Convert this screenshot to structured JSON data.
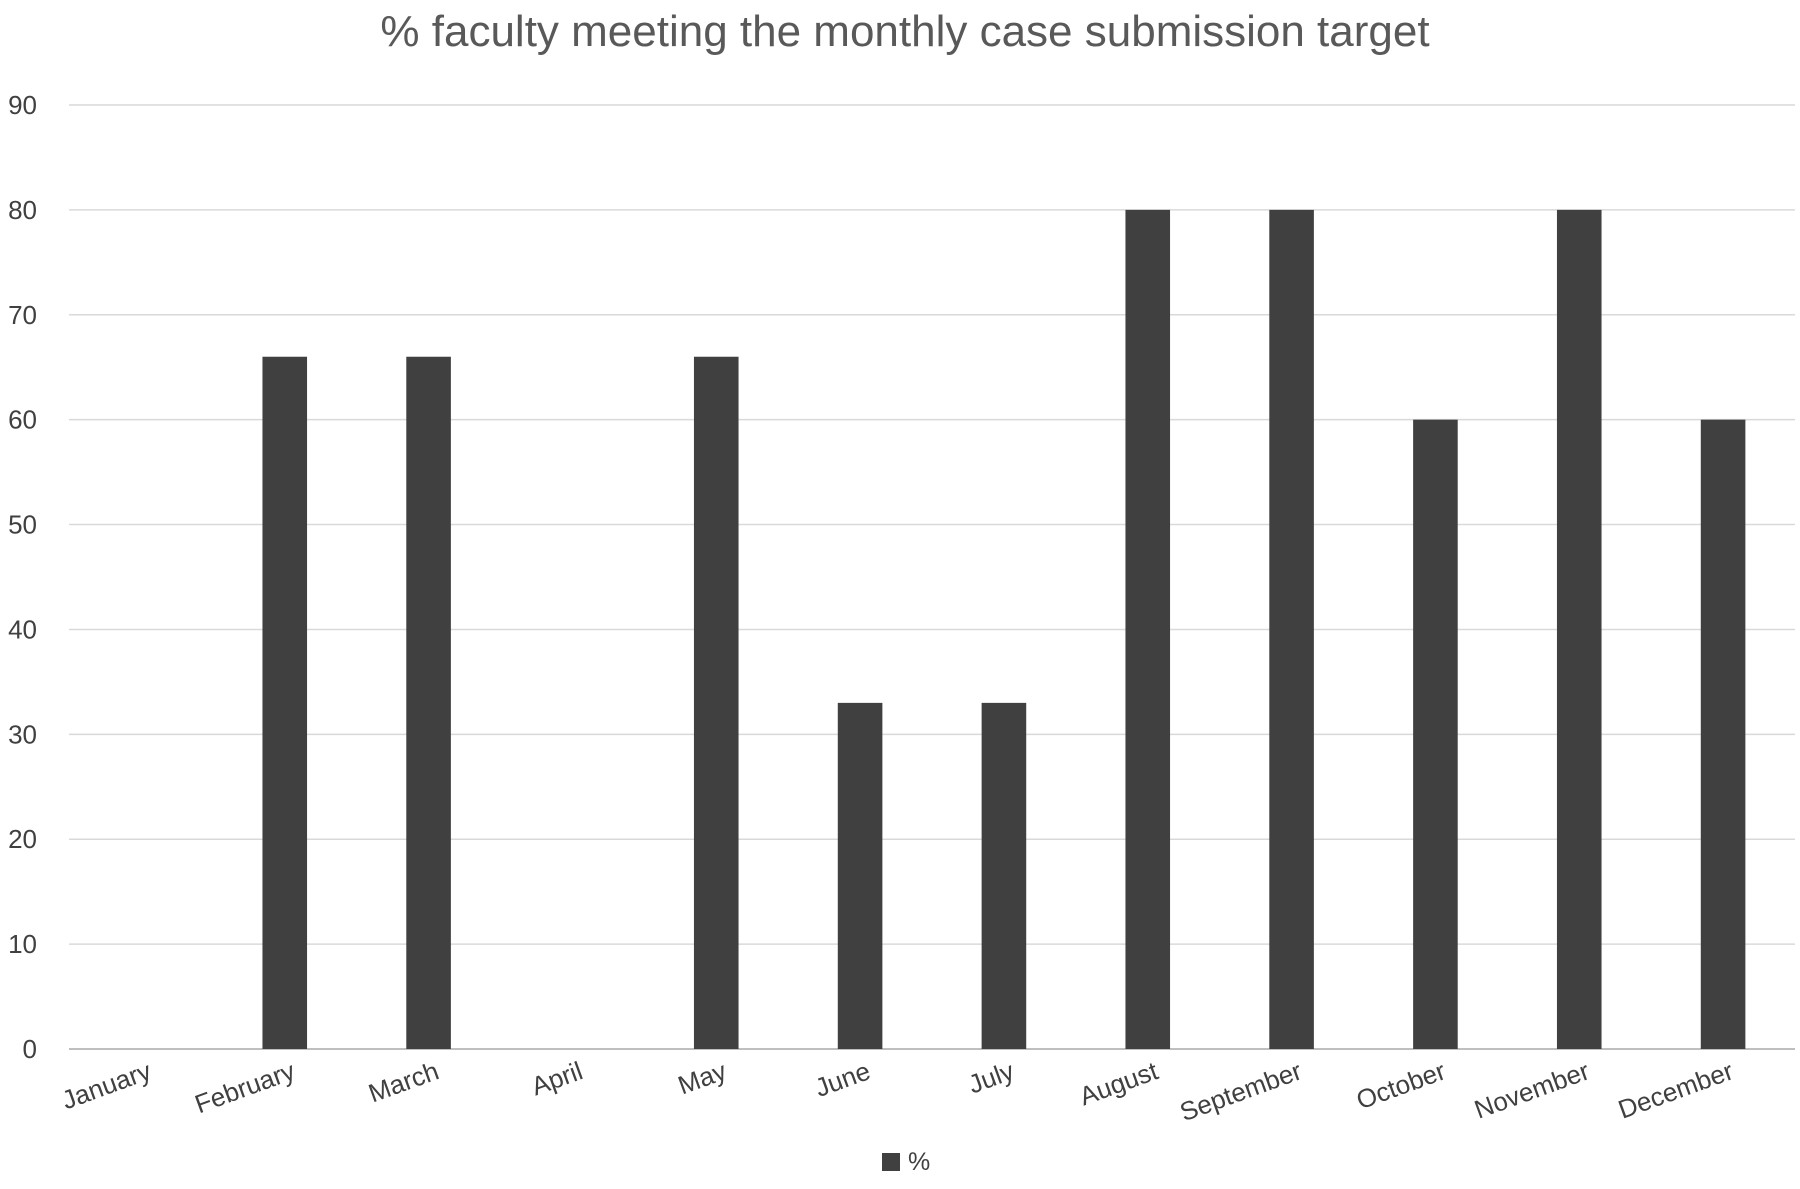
{
  "chart_data": {
    "type": "bar",
    "title": "% faculty meeting the monthly case submission target",
    "xlabel": "",
    "ylabel": "",
    "categories": [
      "January",
      "February",
      "March",
      "April",
      "May",
      "June",
      "July",
      "August",
      "September",
      "October",
      "November",
      "December"
    ],
    "series": [
      {
        "name": "%",
        "values": [
          0,
          66,
          66,
          0,
          66,
          33,
          33,
          80,
          80,
          60,
          80,
          60
        ]
      }
    ],
    "ylim": [
      0,
      90
    ],
    "yticks": [
      0,
      10,
      20,
      30,
      40,
      50,
      60,
      70,
      80,
      90
    ],
    "grid": true,
    "legend": "bottom-center"
  },
  "colors": {
    "bar": "#404040",
    "grid": "#d9d9d9",
    "axis": "#bfbfbf",
    "title": "#595959",
    "tick_label": "#404040",
    "background": "#ffffff"
  }
}
